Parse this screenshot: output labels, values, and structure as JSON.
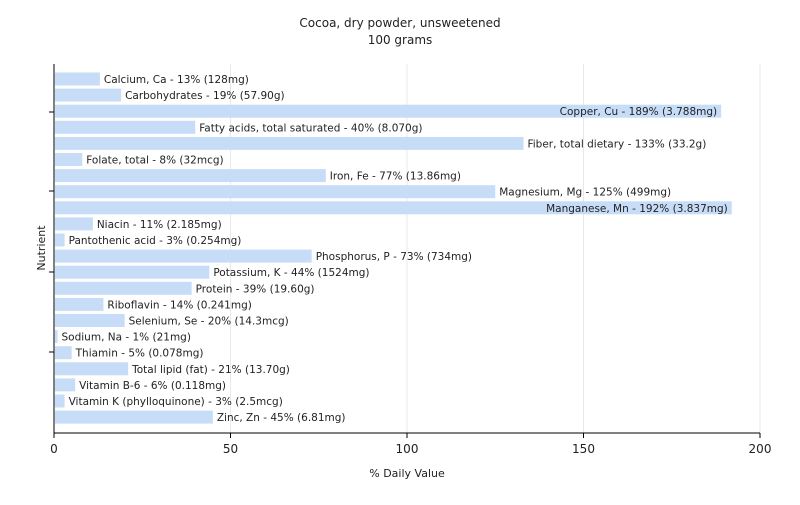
{
  "chart_data": {
    "type": "bar",
    "orientation": "horizontal",
    "title": "Cocoa, dry powder, unsweetened",
    "subtitle": "100 grams",
    "xlabel": "% Daily Value",
    "ylabel": "Nutrient",
    "xlim": [
      0,
      200
    ],
    "xticks": [
      0,
      50,
      100,
      150,
      200
    ],
    "grid": true,
    "bar_color": "#c6dcf7",
    "categories": [
      "Calcium, Ca",
      "Carbohydrates",
      "Copper, Cu",
      "Fatty acids, total saturated",
      "Fiber, total dietary",
      "Folate, total",
      "Iron, Fe",
      "Magnesium, Mg",
      "Manganese, Mn",
      "Niacin",
      "Pantothenic acid",
      "Phosphorus, P",
      "Potassium, K",
      "Protein",
      "Riboflavin",
      "Selenium, Se",
      "Sodium, Na",
      "Thiamin",
      "Total lipid (fat)",
      "Vitamin B-6",
      "Vitamin K (phylloquinone)",
      "Zinc, Zn"
    ],
    "values": [
      13,
      19,
      189,
      40,
      133,
      8,
      77,
      125,
      192,
      11,
      3,
      73,
      44,
      39,
      14,
      20,
      1,
      5,
      21,
      6,
      3,
      45
    ],
    "labels": [
      "Calcium, Ca - 13% (128mg)",
      "Carbohydrates - 19% (57.90g)",
      "Copper, Cu - 189% (3.788mg)",
      "Fatty acids, total saturated - 40% (8.070g)",
      "Fiber, total dietary - 133% (33.2g)",
      "Folate, total - 8% (32mcg)",
      "Iron, Fe - 77% (13.86mg)",
      "Magnesium, Mg - 125% (499mg)",
      "Manganese, Mn - 192% (3.837mg)",
      "Niacin - 11% (2.185mg)",
      "Pantothenic acid - 3% (0.254mg)",
      "Phosphorus, P - 73% (734mg)",
      "Potassium, K - 44% (1524mg)",
      "Protein - 39% (19.60g)",
      "Riboflavin - 14% (0.241mg)",
      "Selenium, Se - 20% (14.3mcg)",
      "Sodium, Na - 1% (21mg)",
      "Thiamin - 5% (0.078mg)",
      "Total lipid (fat) - 21% (13.70g)",
      "Vitamin B-6 - 6% (0.118mg)",
      "Vitamin K (phylloquinone) - 3% (2.5mcg)",
      "Zinc, Zn - 45% (6.81mg)"
    ]
  }
}
